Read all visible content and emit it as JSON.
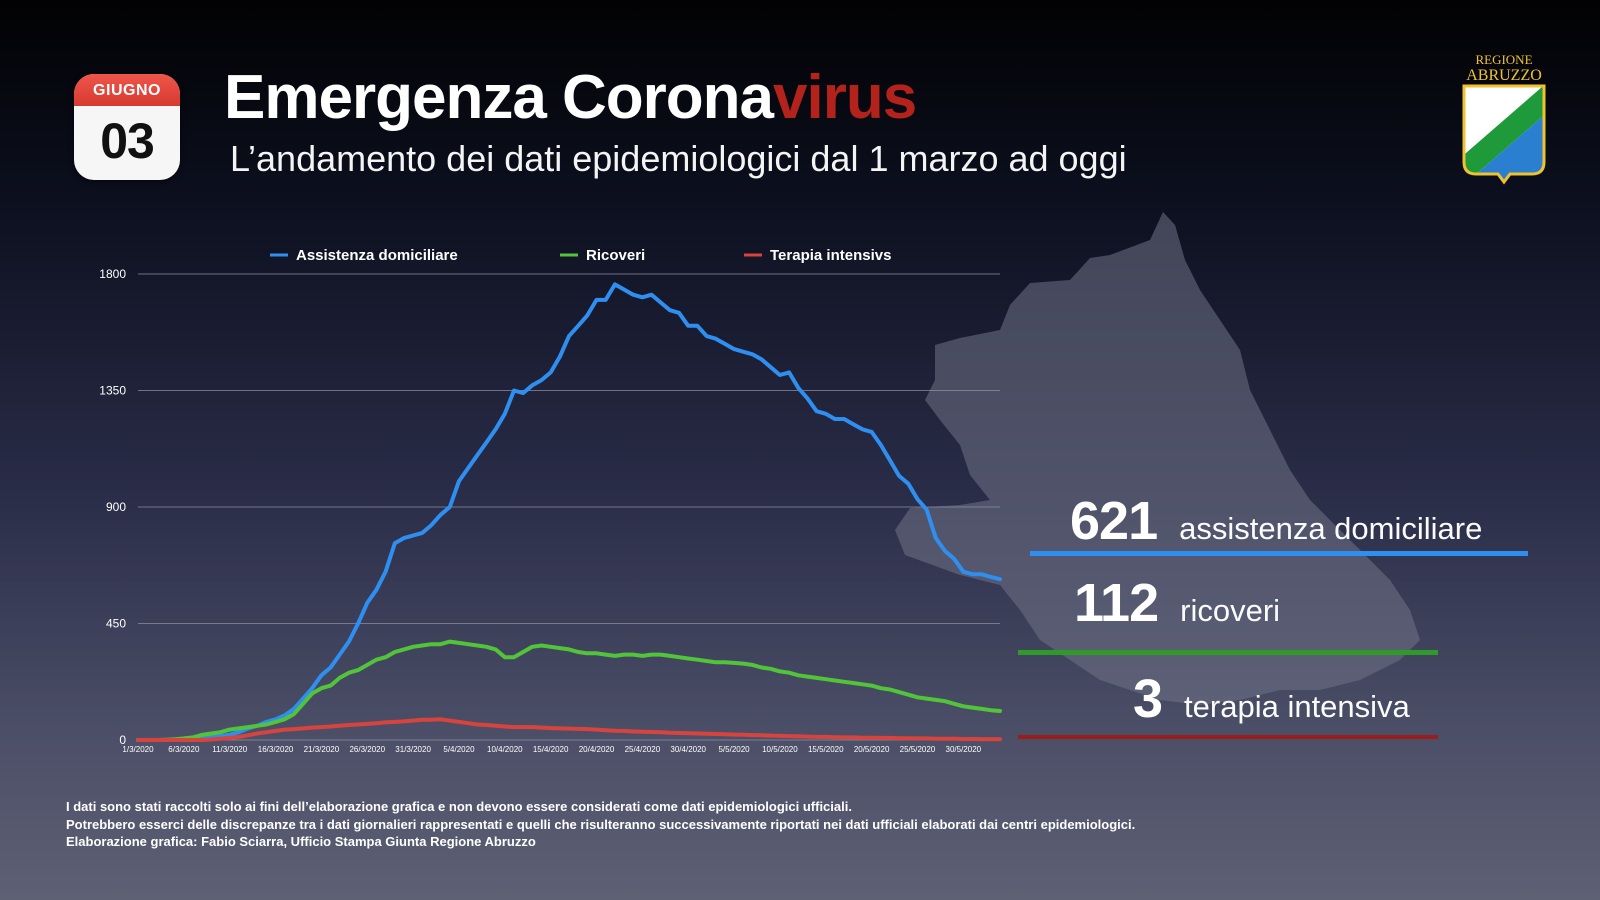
{
  "calendar": {
    "month": "GIUGNO",
    "day": "03"
  },
  "header": {
    "title_main": "Emergenza Corona",
    "title_accent": "virus",
    "subtitle": "L’andamento dei dati epidemiologici dal 1 marzo ad oggi"
  },
  "logo": {
    "line1": "REGIONE",
    "line2": "ABRUZZO"
  },
  "colors": {
    "assistenza": "#2f8ff0",
    "ricoveri": "#52c43a",
    "terapia": "#d6443d",
    "accent_red": "#b3221b"
  },
  "stats": [
    {
      "value": "621",
      "label": "assistenza domiciliare"
    },
    {
      "value": "112",
      "label": "ricoveri"
    },
    {
      "value": "3",
      "label": "terapia intensiva"
    }
  ],
  "footnote": [
    "I dati sono stati raccolti solo ai fini dell’elaborazione grafica e non devono essere considerati come dati epidemiologici ufficiali.",
    "Potrebbero esserci delle discrepanze tra i dati giornalieri rappresentati e quelli che risulteranno successivamente riportati nei dati ufficiali elaborati dai centri epidemiologici.",
    "Elaborazione grafica: Fabio Sciarra, Ufficio Stampa Giunta Regione Abruzzo"
  ],
  "chart_data": {
    "type": "line",
    "title": "",
    "xlabel": "",
    "ylabel": "",
    "ylim": [
      0,
      1800
    ],
    "yticks": [
      0,
      450,
      900,
      1350,
      1800
    ],
    "grid": true,
    "legend": "top",
    "x": [
      "1/3/2020",
      "2/3/2020",
      "3/3/2020",
      "4/3/2020",
      "5/3/2020",
      "6/3/2020",
      "7/3/2020",
      "8/3/2020",
      "9/3/2020",
      "10/3/2020",
      "11/3/2020",
      "12/3/2020",
      "13/3/2020",
      "14/3/2020",
      "15/3/2020",
      "16/3/2020",
      "17/3/2020",
      "18/3/2020",
      "19/3/2020",
      "20/3/2020",
      "21/3/2020",
      "22/3/2020",
      "23/3/2020",
      "24/3/2020",
      "25/3/2020",
      "26/3/2020",
      "27/3/2020",
      "28/3/2020",
      "29/3/2020",
      "30/3/2020",
      "31/3/2020",
      "1/4/2020",
      "2/4/2020",
      "3/4/2020",
      "4/4/2020",
      "5/4/2020",
      "6/4/2020",
      "7/4/2020",
      "8/4/2020",
      "9/4/2020",
      "10/4/2020",
      "11/4/2020",
      "12/4/2020",
      "13/4/2020",
      "14/4/2020",
      "15/4/2020",
      "16/4/2020",
      "17/4/2020",
      "18/4/2020",
      "19/4/2020",
      "20/4/2020",
      "21/4/2020",
      "22/4/2020",
      "23/4/2020",
      "24/4/2020",
      "25/4/2020",
      "26/4/2020",
      "27/4/2020",
      "28/4/2020",
      "29/4/2020",
      "30/4/2020",
      "1/5/2020",
      "2/5/2020",
      "3/5/2020",
      "4/5/2020",
      "5/5/2020",
      "6/5/2020",
      "7/5/2020",
      "8/5/2020",
      "9/5/2020",
      "10/5/2020",
      "11/5/2020",
      "12/5/2020",
      "13/5/2020",
      "14/5/2020",
      "15/5/2020",
      "16/5/2020",
      "17/5/2020",
      "18/5/2020",
      "19/5/2020",
      "20/5/2020",
      "21/5/2020",
      "22/5/2020",
      "23/5/2020",
      "24/5/2020",
      "25/5/2020",
      "26/5/2020",
      "27/5/2020",
      "28/5/2020",
      "29/5/2020",
      "30/5/2020",
      "31/5/2020",
      "1/6/2020",
      "2/6/2020",
      "3/6/2020"
    ],
    "xtick_labels": [
      "1/3/2020",
      "6/3/2020",
      "11/3/2020",
      "16/3/2020",
      "21/3/2020",
      "26/3/2020",
      "31/3/2020",
      "5/4/2020",
      "10/4/2020",
      "15/4/2020",
      "20/4/2020",
      "25/4/2020",
      "30/4/2020",
      "5/5/2020",
      "10/5/2020",
      "15/5/2020",
      "20/5/2020",
      "25/5/2020",
      "30/5/2020"
    ],
    "series": [
      {
        "name": "Assistenza domiciliare",
        "values": [
          0,
          0,
          0,
          0,
          0,
          2,
          4,
          6,
          10,
          15,
          20,
          30,
          45,
          55,
          70,
          80,
          95,
          120,
          160,
          200,
          250,
          280,
          330,
          380,
          450,
          530,
          580,
          650,
          760,
          780,
          790,
          800,
          830,
          870,
          900,
          1000,
          1050,
          1100,
          1150,
          1200,
          1260,
          1350,
          1340,
          1370,
          1390,
          1420,
          1480,
          1560,
          1600,
          1640,
          1700,
          1700,
          1760,
          1740,
          1720,
          1710,
          1720,
          1690,
          1660,
          1650,
          1600,
          1600,
          1560,
          1550,
          1530,
          1510,
          1500,
          1490,
          1470,
          1440,
          1410,
          1420,
          1360,
          1320,
          1270,
          1260,
          1240,
          1240,
          1220,
          1200,
          1190,
          1140,
          1080,
          1020,
          990,
          930,
          890,
          780,
          730,
          700,
          650,
          640,
          640,
          630,
          621
        ]
      },
      {
        "name": "Ricoveri",
        "values": [
          0,
          0,
          0,
          1,
          3,
          6,
          10,
          20,
          25,
          30,
          40,
          45,
          50,
          55,
          60,
          70,
          80,
          100,
          140,
          180,
          200,
          210,
          240,
          260,
          270,
          290,
          310,
          320,
          340,
          350,
          360,
          365,
          370,
          370,
          380,
          375,
          370,
          365,
          360,
          350,
          320,
          320,
          340,
          360,
          365,
          360,
          355,
          350,
          340,
          335,
          335,
          330,
          325,
          330,
          330,
          325,
          330,
          330,
          325,
          320,
          315,
          310,
          305,
          300,
          300,
          298,
          295,
          290,
          280,
          275,
          265,
          260,
          250,
          245,
          240,
          235,
          230,
          225,
          220,
          215,
          210,
          200,
          195,
          185,
          175,
          165,
          160,
          155,
          150,
          140,
          130,
          125,
          120,
          115,
          112
        ]
      },
      {
        "name": "Terapia intensivs",
        "values": [
          0,
          0,
          0,
          0,
          0,
          0,
          0,
          0,
          2,
          5,
          8,
          12,
          18,
          25,
          30,
          35,
          40,
          42,
          45,
          48,
          50,
          52,
          55,
          58,
          60,
          62,
          65,
          68,
          70,
          72,
          75,
          78,
          78,
          80,
          75,
          70,
          65,
          60,
          58,
          55,
          52,
          50,
          50,
          50,
          48,
          46,
          45,
          44,
          43,
          42,
          40,
          38,
          36,
          35,
          33,
          32,
          31,
          30,
          28,
          27,
          26,
          25,
          24,
          23,
          22,
          21,
          20,
          19,
          18,
          17,
          16,
          15,
          14,
          13,
          12,
          12,
          11,
          10,
          10,
          9,
          9,
          8,
          8,
          7,
          7,
          6,
          6,
          5,
          5,
          5,
          4,
          4,
          3,
          3,
          3
        ]
      }
    ]
  }
}
